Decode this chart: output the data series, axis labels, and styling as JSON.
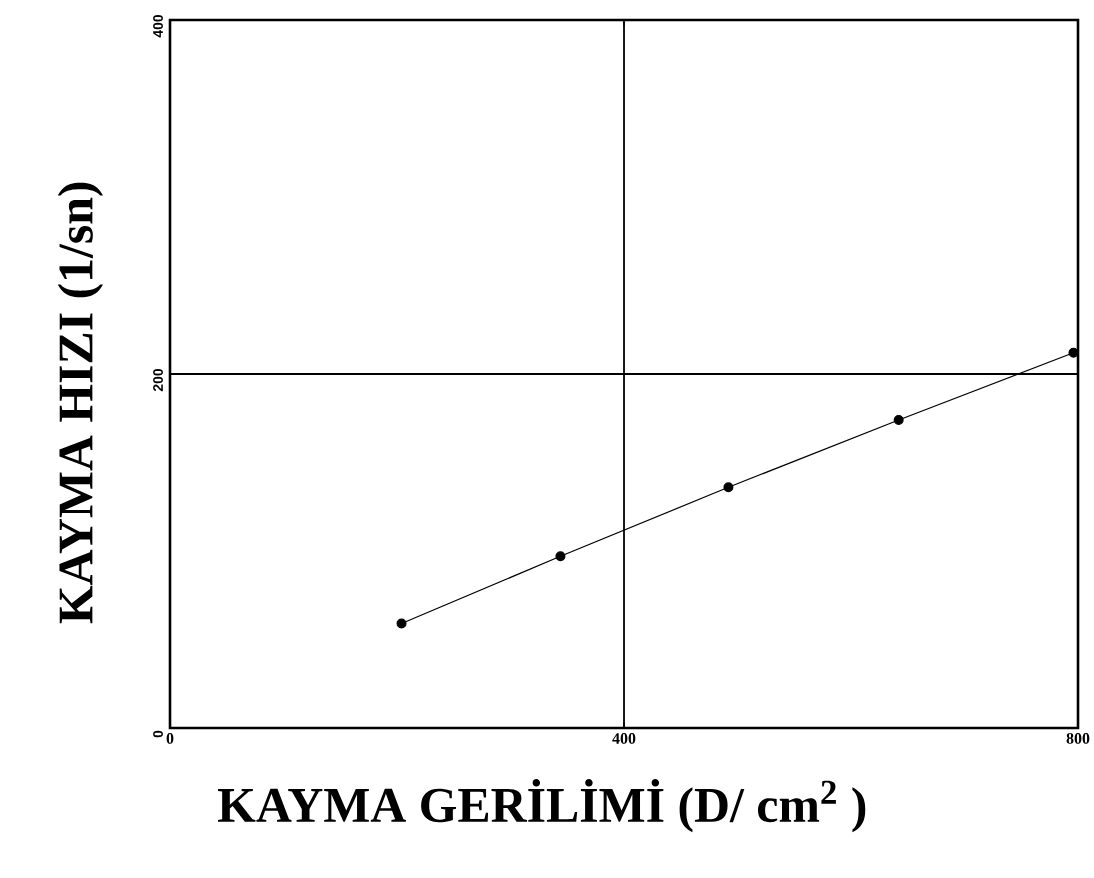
{
  "chart_data": {
    "type": "line",
    "xlabel": "KAYMA GERİLİMİ (D/ cm$^{2}$ )",
    "ylabel": "KAYMA HIZI (1/sn)",
    "xlim": [
      0,
      800
    ],
    "xticks": [
      0,
      400,
      800
    ],
    "ylim": [
      0,
      400
    ],
    "yticks": [
      0,
      200,
      400
    ],
    "grid": true,
    "marker": "circle",
    "line_style": "solid",
    "series": [
      {
        "color": "#000000",
        "x": [
          204,
          344,
          492,
          642,
          796
        ],
        "values": [
          59,
          97,
          136,
          174,
          212
        ]
      }
    ]
  }
}
